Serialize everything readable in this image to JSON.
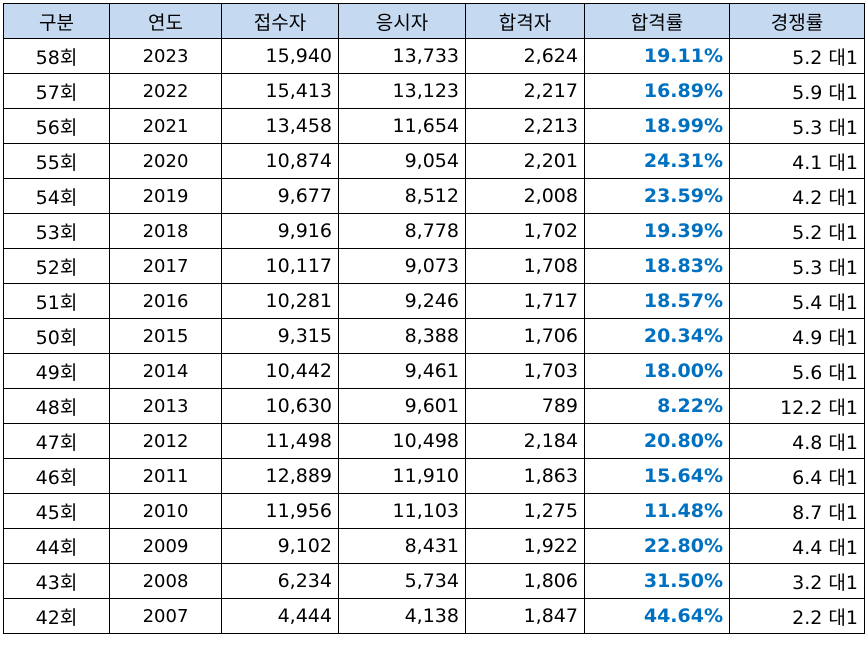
{
  "headers": [
    "구분",
    "연도",
    "접수자",
    "응시자",
    "합격자",
    "합격률",
    "경쟁률"
  ],
  "rows": [
    {
      "round": "58회",
      "year": "2023",
      "applicants": "15,940",
      "examinees": "13,733",
      "passers": "2,624",
      "pass_rate": "19.11%",
      "competition": "5.2 대1"
    },
    {
      "round": "57회",
      "year": "2022",
      "applicants": "15,413",
      "examinees": "13,123",
      "passers": "2,217",
      "pass_rate": "16.89%",
      "competition": "5.9 대1"
    },
    {
      "round": "56회",
      "year": "2021",
      "applicants": "13,458",
      "examinees": "11,654",
      "passers": "2,213",
      "pass_rate": "18.99%",
      "competition": "5.3 대1"
    },
    {
      "round": "55회",
      "year": "2020",
      "applicants": "10,874",
      "examinees": "9,054",
      "passers": "2,201",
      "pass_rate": "24.31%",
      "competition": "4.1 대1"
    },
    {
      "round": "54회",
      "year": "2019",
      "applicants": "9,677",
      "examinees": "8,512",
      "passers": "2,008",
      "pass_rate": "23.59%",
      "competition": "4.2 대1"
    },
    {
      "round": "53회",
      "year": "2018",
      "applicants": "9,916",
      "examinees": "8,778",
      "passers": "1,702",
      "pass_rate": "19.39%",
      "competition": "5.2 대1"
    },
    {
      "round": "52회",
      "year": "2017",
      "applicants": "10,117",
      "examinees": "9,073",
      "passers": "1,708",
      "pass_rate": "18.83%",
      "competition": "5.3 대1"
    },
    {
      "round": "51회",
      "year": "2016",
      "applicants": "10,281",
      "examinees": "9,246",
      "passers": "1,717",
      "pass_rate": "18.57%",
      "competition": "5.4 대1"
    },
    {
      "round": "50회",
      "year": "2015",
      "applicants": "9,315",
      "examinees": "8,388",
      "passers": "1,706",
      "pass_rate": "20.34%",
      "competition": "4.9 대1"
    },
    {
      "round": "49회",
      "year": "2014",
      "applicants": "10,442",
      "examinees": "9,461",
      "passers": "1,703",
      "pass_rate": "18.00%",
      "competition": "5.6 대1"
    },
    {
      "round": "48회",
      "year": "2013",
      "applicants": "10,630",
      "examinees": "9,601",
      "passers": "789",
      "pass_rate": "8.22%",
      "competition": "12.2 대1"
    },
    {
      "round": "47회",
      "year": "2012",
      "applicants": "11,498",
      "examinees": "10,498",
      "passers": "2,184",
      "pass_rate": "20.80%",
      "competition": "4.8 대1"
    },
    {
      "round": "46회",
      "year": "2011",
      "applicants": "12,889",
      "examinees": "11,910",
      "passers": "1,863",
      "pass_rate": "15.64%",
      "competition": "6.4 대1"
    },
    {
      "round": "45회",
      "year": "2010",
      "applicants": "11,956",
      "examinees": "11,103",
      "passers": "1,275",
      "pass_rate": "11.48%",
      "competition": "8.7 대1"
    },
    {
      "round": "44회",
      "year": "2009",
      "applicants": "9,102",
      "examinees": "8,431",
      "passers": "1,922",
      "pass_rate": "22.80%",
      "competition": "4.4 대1"
    },
    {
      "round": "43회",
      "year": "2008",
      "applicants": "6,234",
      "examinees": "5,734",
      "passers": "1,806",
      "pass_rate": "31.50%",
      "competition": "3.2 대1"
    },
    {
      "round": "42회",
      "year": "2007",
      "applicants": "4,444",
      "examinees": "4,138",
      "passers": "1,847",
      "pass_rate": "44.64%",
      "competition": "2.2 대1"
    }
  ],
  "colors": {
    "header_background": "#c5d9f1",
    "pass_rate_text": "#0070c0",
    "border": "#000000"
  }
}
